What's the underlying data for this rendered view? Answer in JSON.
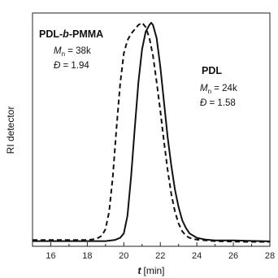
{
  "chart_data": {
    "type": "line",
    "xlabel": {
      "var": "t",
      "unit": "[min]"
    },
    "ylabel": "RI detector",
    "xlim": [
      15,
      28
    ],
    "ylim": [
      0,
      1
    ],
    "xticks": [
      16,
      18,
      20,
      22,
      24,
      26,
      28
    ],
    "grid": false,
    "annotations": [
      {
        "name_parts": [
          "PDL-",
          "b",
          "-PMMA"
        ],
        "mn_label": "M",
        "mn_sub": "n",
        "mn_value": " = 38k",
        "d_label": "Đ",
        "d_value": " = 1.94"
      },
      {
        "name_parts": [
          "PDL",
          "",
          ""
        ],
        "mn_label": "M",
        "mn_sub": "n",
        "mn_value": " = 24k",
        "d_label": "Đ",
        "d_value": " = 1.58"
      }
    ],
    "series": [
      {
        "style": "dashed",
        "x": [
          15.0,
          16.0,
          17.0,
          18.0,
          18.5,
          18.8,
          19.0,
          19.2,
          19.4,
          19.6,
          19.8,
          20.0,
          20.2,
          20.4,
          20.6,
          20.8,
          21.0,
          21.2,
          21.4,
          21.6,
          21.8,
          22.0,
          22.2,
          22.4,
          22.6,
          22.8,
          23.0,
          23.2,
          23.4,
          23.6,
          23.8,
          24.0,
          24.5,
          25.0,
          26.0,
          27.0,
          28.0
        ],
        "y": [
          0.01,
          0.01,
          0.01,
          0.01,
          0.015,
          0.03,
          0.06,
          0.14,
          0.3,
          0.52,
          0.72,
          0.86,
          0.92,
          0.95,
          0.97,
          0.99,
          1.0,
          0.98,
          0.93,
          0.85,
          0.73,
          0.6,
          0.46,
          0.33,
          0.22,
          0.14,
          0.085,
          0.05,
          0.03,
          0.02,
          0.015,
          0.012,
          0.008,
          0.005,
          0.003,
          0.002,
          0.002
        ]
      },
      {
        "style": "solid",
        "x": [
          15.0,
          16.0,
          17.0,
          18.0,
          19.0,
          19.5,
          19.8,
          20.0,
          20.2,
          20.4,
          20.6,
          20.8,
          21.0,
          21.2,
          21.4,
          21.5,
          21.6,
          21.8,
          22.0,
          22.2,
          22.4,
          22.6,
          22.8,
          23.0,
          23.2,
          23.4,
          23.6,
          23.8,
          24.0,
          24.5,
          25.0,
          26.0,
          27.0,
          28.0
        ],
        "y": [
          0.005,
          0.005,
          0.005,
          0.005,
          0.005,
          0.01,
          0.02,
          0.04,
          0.12,
          0.3,
          0.52,
          0.73,
          0.88,
          0.96,
          0.99,
          1.0,
          0.99,
          0.93,
          0.8,
          0.64,
          0.48,
          0.35,
          0.24,
          0.16,
          0.1,
          0.065,
          0.04,
          0.03,
          0.02,
          0.012,
          0.008,
          0.008,
          0.006,
          0.004
        ]
      }
    ]
  }
}
